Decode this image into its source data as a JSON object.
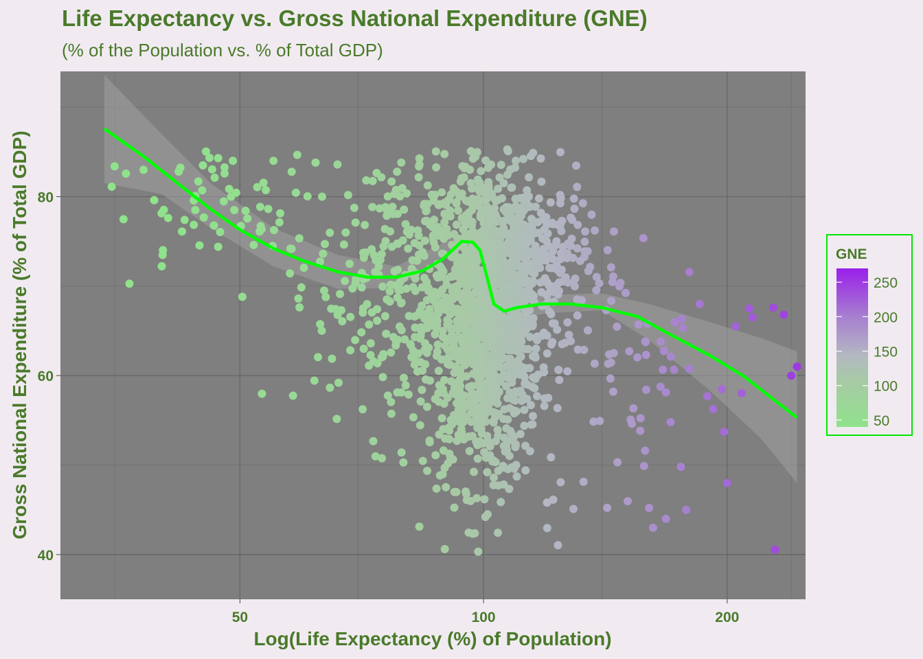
{
  "chart_data": {
    "type": "scatter",
    "title": "Life Expectancy vs. Gross National Expenditure (GNE)",
    "subtitle": "(% of the Population vs. % of Total GDP)",
    "xlabel": "Log(Life Expectancy (%) of Population)",
    "ylabel": "Gross National Expenditure (% of Total GDP)",
    "x_scale": "log10",
    "xlim": [
      30,
      250
    ],
    "ylim": [
      35,
      94
    ],
    "x_ticks": [
      50,
      100,
      200
    ],
    "x_tick_labels": [
      "50",
      "100",
      "200"
    ],
    "y_ticks": [
      40,
      60,
      80
    ],
    "y_tick_labels": [
      "40",
      "60",
      "80"
    ],
    "grid": true,
    "legend": {
      "title": "GNE",
      "position": "right",
      "type": "color-gradient",
      "range": [
        40,
        270
      ],
      "ticks": [
        50,
        100,
        150,
        200,
        250
      ],
      "tick_labels": [
        "50",
        "100",
        "150",
        "200",
        "250"
      ],
      "colors": [
        "#90E28C",
        "#B0B5BF",
        "#9A1FEA"
      ]
    },
    "smooth_line": {
      "color": "#00FF00",
      "x": [
        34,
        38,
        42,
        46,
        50,
        55,
        60,
        66,
        72,
        78,
        84,
        89,
        94,
        97,
        99,
        101,
        103,
        106,
        110,
        118,
        128,
        140,
        155,
        170,
        190,
        210,
        230,
        244
      ],
      "y": [
        87.6,
        84.5,
        81.4,
        78.6,
        76.3,
        74.2,
        72.8,
        71.6,
        71.0,
        71.0,
        71.7,
        73.0,
        75.0,
        74.9,
        74.0,
        71.0,
        68.0,
        67.2,
        67.6,
        68.0,
        68.0,
        67.6,
        66.6,
        64.6,
        62.3,
        59.9,
        57.1,
        55.3
      ]
    },
    "confidence_band": {
      "color": "#A0A0A0",
      "x": [
        34,
        40,
        46,
        55,
        66,
        78,
        94,
        100,
        106,
        120,
        140,
        160,
        190,
        220,
        244
      ],
      "upper": [
        93.6,
        87.0,
        81.5,
        76.5,
        73.5,
        72.2,
        75.9,
        75.5,
        69.3,
        69.0,
        69.2,
        68.0,
        66.0,
        64.2,
        62.7
      ],
      "lower": [
        81.5,
        80.3,
        76.5,
        72.2,
        69.7,
        69.8,
        74.1,
        72.6,
        66.0,
        67.0,
        67.3,
        64.0,
        58.4,
        53.0,
        48.0
      ]
    },
    "point_color_scale": "GNE",
    "points_note": "dense cloud concentrated near x=90-120, y=45-85"
  }
}
